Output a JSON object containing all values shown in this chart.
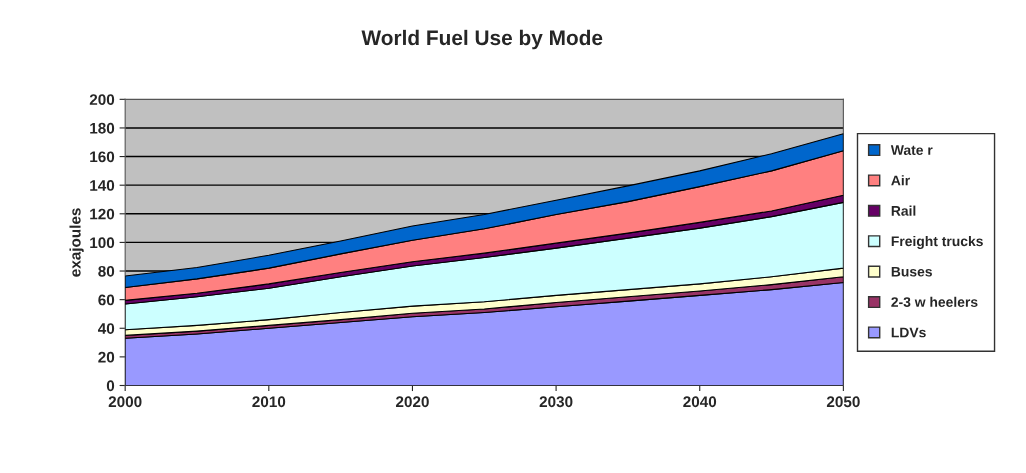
{
  "chart_data": {
    "type": "area",
    "stacked": true,
    "title": "World Fuel Use by Mode",
    "ylabel": "exajoules",
    "x": [
      2000,
      2005,
      2010,
      2015,
      2020,
      2025,
      2030,
      2035,
      2040,
      2045,
      2050
    ],
    "series": [
      {
        "name": "LDVs",
        "color": "#9999ff",
        "values": [
          33,
          36,
          40,
          44,
          48,
          51,
          55,
          59,
          63,
          67,
          72
        ]
      },
      {
        "name": "2-3 w heelers",
        "color": "#993366",
        "values": [
          2,
          2,
          2,
          2,
          2.5,
          2.5,
          3,
          3,
          3,
          3.5,
          4
        ]
      },
      {
        "name": "Buses",
        "color": "#ffffcc",
        "values": [
          4,
          4,
          4,
          5,
          5,
          5,
          5,
          5,
          5,
          5.5,
          6
        ]
      },
      {
        "name": "Freight trucks",
        "color": "#ccffff",
        "values": [
          18,
          20,
          22,
          25,
          28,
          31,
          33,
          36,
          39,
          42,
          46
        ]
      },
      {
        "name": "Rail",
        "color": "#660066",
        "values": [
          2.5,
          2.5,
          3,
          3,
          3,
          3,
          3.5,
          3.5,
          4,
          4,
          5
        ]
      },
      {
        "name": "Air",
        "color": "#ff8080",
        "values": [
          9,
          10,
          11,
          13,
          15,
          17,
          20,
          22,
          25,
          28,
          31
        ]
      },
      {
        "name": "Wate r",
        "color": "#0066cc",
        "values": [
          8,
          8,
          9,
          9,
          10,
          10,
          10,
          11,
          11,
          12,
          12
        ]
      }
    ],
    "xlim": [
      2000,
      2050
    ],
    "xticks": [
      2000,
      2010,
      2020,
      2030,
      2040,
      2050
    ],
    "ylim": [
      0,
      200
    ],
    "yticks": [
      0,
      20,
      40,
      60,
      80,
      100,
      120,
      140,
      160,
      180,
      200
    ],
    "grid": "y",
    "legend": "right"
  }
}
